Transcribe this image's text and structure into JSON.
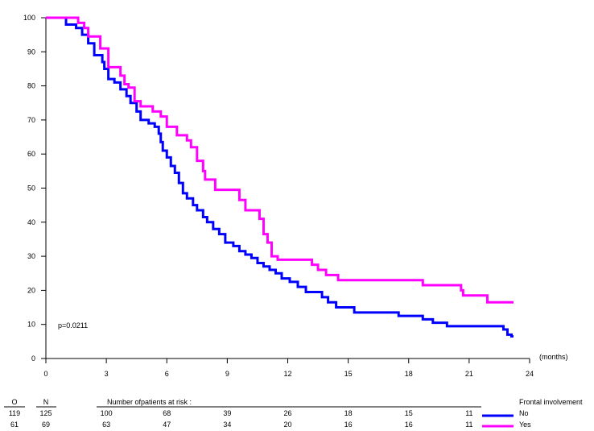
{
  "chart_data": {
    "type": "line",
    "title": "",
    "xlabel": "(months)",
    "ylabel": "",
    "xlim": [
      0,
      24
    ],
    "ylim": [
      0,
      100
    ],
    "x_ticks": [
      0,
      3,
      6,
      9,
      12,
      15,
      18,
      21,
      24
    ],
    "y_ticks": [
      0,
      10,
      20,
      30,
      40,
      50,
      60,
      70,
      80,
      90,
      100
    ],
    "annotation": "p=0.0211",
    "legend_title": "Frontal involvement",
    "series": [
      {
        "name": "No",
        "color": "#0000ff",
        "points": [
          [
            0,
            100
          ],
          [
            1.0,
            98
          ],
          [
            1.5,
            97
          ],
          [
            1.8,
            95
          ],
          [
            2.1,
            92.5
          ],
          [
            2.4,
            89
          ],
          [
            2.8,
            87
          ],
          [
            2.9,
            85
          ],
          [
            3.1,
            82
          ],
          [
            3.4,
            81
          ],
          [
            3.7,
            79
          ],
          [
            4.0,
            77
          ],
          [
            4.2,
            75
          ],
          [
            4.5,
            72.5
          ],
          [
            4.7,
            70
          ],
          [
            5.1,
            69
          ],
          [
            5.4,
            68
          ],
          [
            5.6,
            66
          ],
          [
            5.7,
            63.5
          ],
          [
            5.8,
            61
          ],
          [
            6.0,
            59
          ],
          [
            6.2,
            56.5
          ],
          [
            6.4,
            54.5
          ],
          [
            6.6,
            51.5
          ],
          [
            6.8,
            48.5
          ],
          [
            7.0,
            47
          ],
          [
            7.3,
            45
          ],
          [
            7.5,
            43.5
          ],
          [
            7.8,
            41.5
          ],
          [
            8.0,
            40
          ],
          [
            8.3,
            38
          ],
          [
            8.6,
            36.5
          ],
          [
            8.9,
            34
          ],
          [
            9.3,
            33
          ],
          [
            9.6,
            31.5
          ],
          [
            9.9,
            30.5
          ],
          [
            10.2,
            29.5
          ],
          [
            10.5,
            28
          ],
          [
            10.8,
            27
          ],
          [
            11.1,
            26
          ],
          [
            11.4,
            25
          ],
          [
            11.7,
            23.5
          ],
          [
            12.1,
            22.5
          ],
          [
            12.5,
            21
          ],
          [
            12.9,
            19.5
          ],
          [
            13.7,
            18
          ],
          [
            14.0,
            16.5
          ],
          [
            14.4,
            15
          ],
          [
            15.3,
            13.5
          ],
          [
            17.5,
            12.5
          ],
          [
            18.7,
            11.5
          ],
          [
            19.2,
            10.5
          ],
          [
            19.9,
            9.5
          ],
          [
            22.7,
            8.5
          ],
          [
            22.9,
            7
          ],
          [
            23.1,
            6.5
          ],
          [
            23.2,
            6.5
          ]
        ]
      },
      {
        "name": "Yes",
        "color": "#ff00ff",
        "points": [
          [
            0,
            100
          ],
          [
            1.6,
            98.5
          ],
          [
            1.9,
            97
          ],
          [
            2.1,
            94.5
          ],
          [
            2.7,
            91
          ],
          [
            3.1,
            85.5
          ],
          [
            3.7,
            83
          ],
          [
            3.9,
            80.5
          ],
          [
            4.1,
            79.5
          ],
          [
            4.4,
            75.5
          ],
          [
            4.7,
            74
          ],
          [
            5.3,
            72.5
          ],
          [
            5.7,
            71
          ],
          [
            6.0,
            68
          ],
          [
            6.5,
            65.5
          ],
          [
            7.0,
            64
          ],
          [
            7.2,
            62
          ],
          [
            7.5,
            58
          ],
          [
            7.8,
            55
          ],
          [
            7.9,
            52.5
          ],
          [
            8.4,
            49.5
          ],
          [
            9.6,
            46.5
          ],
          [
            9.9,
            43.5
          ],
          [
            10.6,
            41
          ],
          [
            10.8,
            36.5
          ],
          [
            11.0,
            34
          ],
          [
            11.2,
            30
          ],
          [
            11.5,
            29
          ],
          [
            13.2,
            27.5
          ],
          [
            13.5,
            26
          ],
          [
            13.9,
            24.5
          ],
          [
            14.5,
            23
          ],
          [
            18.7,
            21.5
          ],
          [
            20.6,
            20
          ],
          [
            20.7,
            18.5
          ],
          [
            21.9,
            16.5
          ],
          [
            23.2,
            16.5
          ]
        ]
      }
    ],
    "risk_table": {
      "col_o": "O",
      "col_n": "N",
      "header": "Number ofpatients at risk :",
      "rows": [
        {
          "o": "119",
          "n": "125",
          "values": [
            "100",
            "68",
            "39",
            "26",
            "18",
            "15",
            "11"
          ],
          "label": "No"
        },
        {
          "o": "61",
          "n": "69",
          "values": [
            "63",
            "47",
            "34",
            "20",
            "16",
            "16",
            "11"
          ],
          "label": "Yes"
        }
      ]
    }
  }
}
